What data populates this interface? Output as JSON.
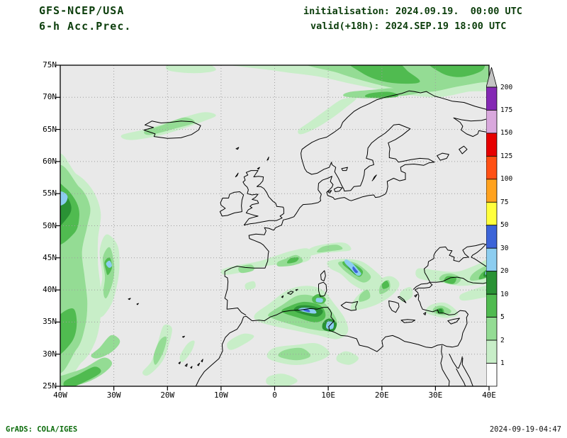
{
  "header": {
    "model": "GFS-NCEP/USA",
    "product": "6-h Acc.Prec.",
    "init_line": "initialisation: 2024.09.19.  00:00 UTC",
    "valid_line": "valid(+18h): 2024.SEP.19 18:00 UTC"
  },
  "axes": {
    "lat": [
      {
        "label": "75N",
        "deg": 75
      },
      {
        "label": "70N",
        "deg": 70
      },
      {
        "label": "65N",
        "deg": 65
      },
      {
        "label": "60N",
        "deg": 60
      },
      {
        "label": "55N",
        "deg": 55
      },
      {
        "label": "50N",
        "deg": 50
      },
      {
        "label": "45N",
        "deg": 45
      },
      {
        "label": "40N",
        "deg": 40
      },
      {
        "label": "35N",
        "deg": 35
      },
      {
        "label": "30N",
        "deg": 30
      },
      {
        "label": "25N",
        "deg": 25
      }
    ],
    "lon": [
      {
        "label": "40W",
        "deg": -40
      },
      {
        "label": "30W",
        "deg": -30
      },
      {
        "label": "20W",
        "deg": -20
      },
      {
        "label": "10W",
        "deg": -10
      },
      {
        "label": "0",
        "deg": 0
      },
      {
        "label": "10E",
        "deg": 10
      },
      {
        "label": "20E",
        "deg": 20
      },
      {
        "label": "30E",
        "deg": 30
      },
      {
        "label": "40E",
        "deg": 40
      }
    ]
  },
  "colorbar": {
    "labels_top_to_bottom": [
      "200",
      "175",
      "150",
      "125",
      "100",
      "75",
      "50",
      "30",
      "20",
      "10",
      "5",
      "2",
      "1"
    ],
    "levels_mm": [
      1,
      2,
      5,
      10,
      20,
      30,
      50,
      75,
      100,
      125,
      150,
      175,
      200
    ],
    "palette_bottom_to_top": [
      "#fdfdfd",
      "#c8eec8",
      "#94dc94",
      "#50bb50",
      "#2a9235",
      "#8ccdf0",
      "#3c64d8",
      "#ffff3c",
      "#ffa21e",
      "#ff5014",
      "#e60000",
      "#d9a8dd",
      "#8428b4"
    ],
    "arrow_color": "#c4c4c4"
  },
  "map": {
    "background": "#e9e9e9",
    "grid_color": "#9e9e9e",
    "coast_color": "#000000",
    "frame_color": "#000000"
  },
  "footer": {
    "left": "GrADS: COLA/IGES",
    "right": "2024-09-19-04:47"
  }
}
